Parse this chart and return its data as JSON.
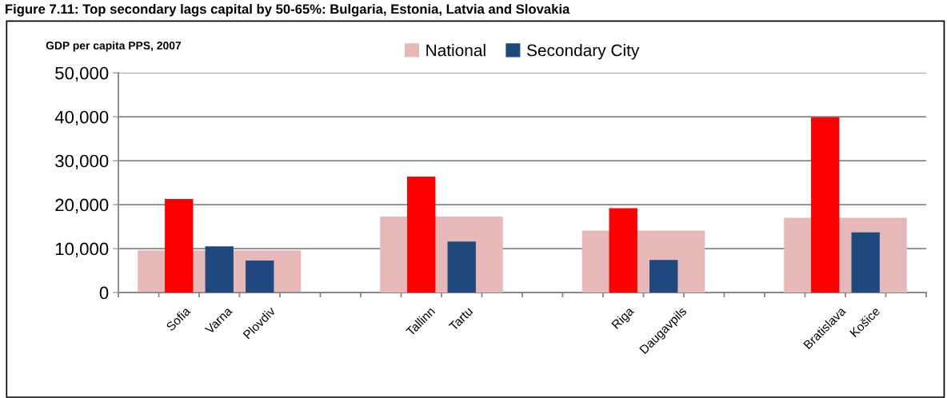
{
  "chart_data": {
    "type": "bar",
    "title": "Figure 7.11: Top secondary lags capital by 50-65%: Bulgaria, Estonia, Latvia and Slovakia",
    "ylabel": "GDP per capita PPS, 2007",
    "categories": [
      null,
      "Sofia",
      "Varna",
      "Plovdiv",
      null,
      null,
      null,
      "Tallinn",
      "Tartu",
      null,
      null,
      null,
      "Riga",
      "Daugavpils",
      null,
      null,
      null,
      "Bratislava",
      "Košice",
      null
    ],
    "series": [
      {
        "name": "National",
        "type": "area",
        "color": "#e6b9b8",
        "values": [
          9400,
          null,
          null,
          9400,
          9400,
          null,
          null,
          null,
          null,
          null,
          null,
          null,
          null,
          null,
          null,
          null,
          null,
          null,
          null,
          null
        ]
      },
      {
        "type": "area",
        "color": "#e6b9b8",
        "values": [
          null,
          null,
          null,
          null,
          null,
          null,
          17100,
          null,
          17100,
          17100,
          null,
          null,
          null,
          null,
          null,
          null,
          null,
          null,
          null,
          null
        ]
      },
      {
        "type": "area",
        "color": "#e6b9b8",
        "values": [
          null,
          null,
          null,
          null,
          null,
          null,
          null,
          null,
          null,
          null,
          null,
          13900,
          null,
          13900,
          13900,
          null,
          null,
          null,
          null,
          null
        ]
      },
      {
        "type": "area",
        "color": "#e6b9b8",
        "values": [
          null,
          null,
          null,
          null,
          null,
          null,
          null,
          null,
          null,
          null,
          null,
          null,
          null,
          null,
          null,
          null,
          16800,
          null,
          16800,
          16800
        ]
      },
      {
        "color": "#ff0000",
        "values": [
          null,
          21300,
          null,
          null,
          null,
          null,
          null,
          26400,
          null,
          null,
          null,
          null,
          19200,
          null,
          null,
          null,
          null,
          39900,
          null,
          null
        ]
      },
      {
        "name": "Secondary City",
        "color": "#1f497d",
        "values": [
          null,
          null,
          10500,
          7300,
          null,
          null,
          null,
          null,
          11600,
          null,
          null,
          null,
          null,
          7400,
          null,
          null,
          null,
          null,
          13700,
          null
        ]
      }
    ],
    "ylim": [
      0,
      50000
    ],
    "yticks": [
      {
        "value": 0,
        "label": "0"
      },
      {
        "value": 10000,
        "label": "10,000"
      },
      {
        "value": 20000,
        "label": "20,000"
      },
      {
        "value": 30000,
        "label": "30,000"
      },
      {
        "value": 40000,
        "label": "40,000"
      },
      {
        "value": 50000,
        "label": "50,000"
      }
    ],
    "grid": "y",
    "legend": "top"
  }
}
